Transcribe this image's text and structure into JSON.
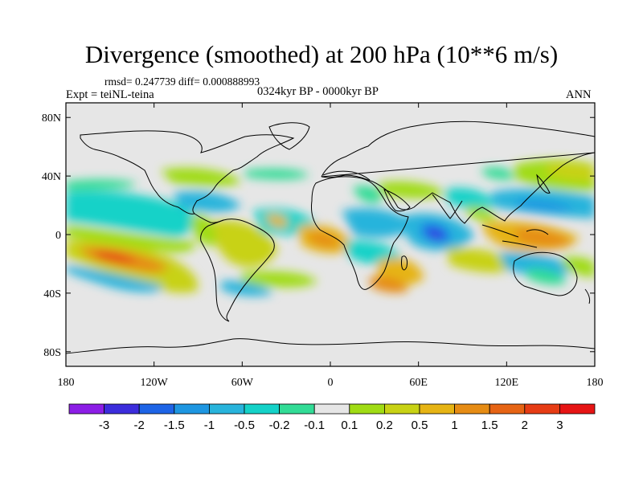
{
  "figure": {
    "title": "Divergence (smoothed) at 200 hPa (10**6 m/s)",
    "stats": "rmsd= 0.247739 diff= 0.000888993",
    "experiment": "Expt = teiNL-teina",
    "period": "0324kyr BP - 0000kyr BP",
    "season": "ANN"
  },
  "chart_data": {
    "type": "heatmap",
    "title": "Divergence (smoothed) at 200 hPa (10**6 m/s)",
    "projection": "cylindrical-equidistant",
    "lon_range": [
      -180,
      180
    ],
    "lat_range": [
      -90,
      90
    ],
    "x_ticks": [
      "180",
      "120W",
      "60W",
      "0",
      "60E",
      "120E",
      "180"
    ],
    "x_tick_values": [
      -180,
      -120,
      -60,
      0,
      60,
      120,
      180
    ],
    "y_ticks": [
      "80N",
      "40N",
      "0",
      "40S",
      "80S"
    ],
    "y_tick_values": [
      80,
      40,
      0,
      -40,
      -80
    ],
    "colorbar_labels": [
      "-3",
      "-2",
      "-1.5",
      "-1",
      "-0.5",
      "-0.2",
      "-0.1",
      "0.1",
      "0.2",
      "0.5",
      "1",
      "1.5",
      "2",
      "3"
    ],
    "colorbar_levels": [
      -3,
      -2,
      -1.5,
      -1,
      -0.5,
      -0.2,
      -0.1,
      0.1,
      0.2,
      0.5,
      1,
      1.5,
      2,
      3
    ],
    "colorbar_colors": [
      "#8c1ee6",
      "#3c2ddc",
      "#1e64e6",
      "#1e96e1",
      "#28b4dc",
      "#14d2c8",
      "#32dc96",
      "#e6e6e6",
      "#a0dc14",
      "#c8d214",
      "#e6b414",
      "#e68c14",
      "#e66414",
      "#e63c14",
      "#e61414"
    ],
    "background_color": "#e6e6e6",
    "features": [
      {
        "name": "pacific-sw-positive",
        "lon": -150,
        "lat": -12,
        "value": 2
      },
      {
        "name": "pacific-se-positive",
        "lon": -115,
        "lat": -28,
        "value": 1
      },
      {
        "name": "pacific-tropical-negative",
        "lon": -140,
        "lat": 12,
        "value": -0.5
      },
      {
        "name": "amazon-positive",
        "lon": -55,
        "lat": -10,
        "value": 0.5
      },
      {
        "name": "atlantic-negative",
        "lon": -30,
        "lat": 5,
        "value": -0.5
      },
      {
        "name": "africa-west-positive",
        "lon": -5,
        "lat": -5,
        "value": 1
      },
      {
        "name": "africa-central-negative",
        "lon": 20,
        "lat": -10,
        "value": -0.5
      },
      {
        "name": "east-africa-positive",
        "lon": 40,
        "lat": -20,
        "value": 1
      },
      {
        "name": "indian-ocean-negative",
        "lon": 65,
        "lat": -2,
        "value": -2
      },
      {
        "name": "indian-ocean-south-positive",
        "lon": 80,
        "lat": -25,
        "value": 0.5
      },
      {
        "name": "maritime-continent-positive",
        "lon": 130,
        "lat": -5,
        "value": 1.5
      },
      {
        "name": "west-pacific-negative",
        "lon": 145,
        "lat": 25,
        "value": -0.5
      },
      {
        "name": "north-pacific-positive",
        "lon": 165,
        "lat": 35,
        "value": 1
      }
    ]
  }
}
